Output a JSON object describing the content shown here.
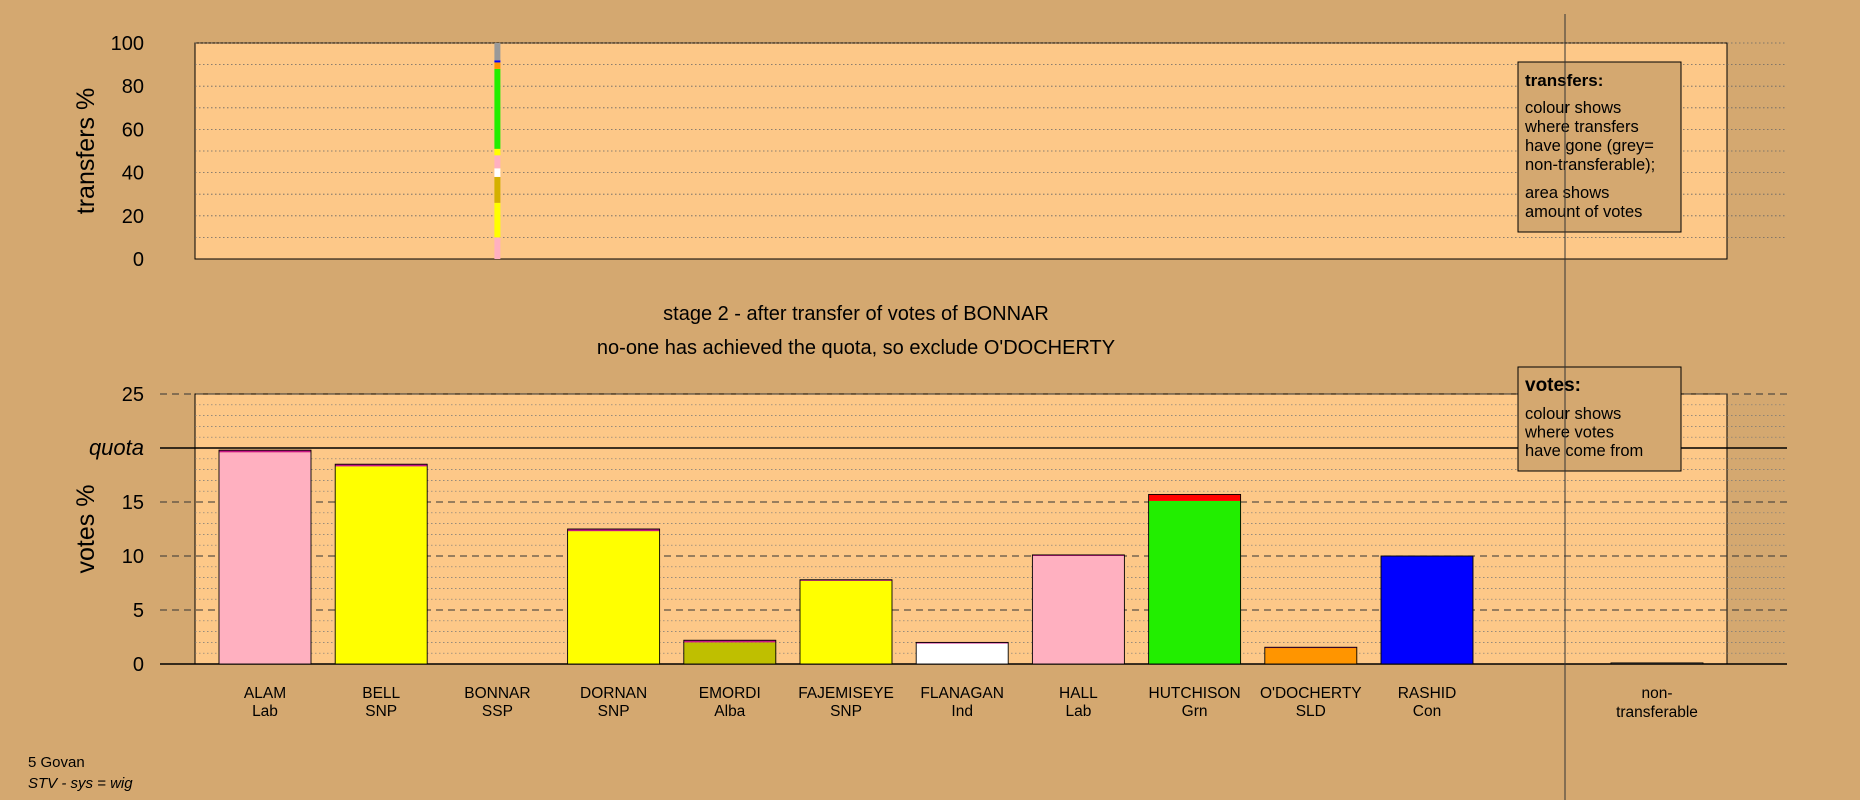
{
  "footer": {
    "area": "5 Govan",
    "system": "STV - sys = wig"
  },
  "colors": {
    "background": "#d4a870",
    "plot_bg": "#fdc888",
    "legend_bg": "#d4a870",
    "line": "#000000"
  },
  "chart_data": [
    {
      "type": "bar",
      "stacked": true,
      "ylabel": "transfers %",
      "ylim": [
        0,
        100
      ],
      "yticks": [
        0,
        20,
        40,
        60,
        80,
        100
      ],
      "grid": "dotted",
      "legend": {
        "placement": "top-right",
        "title": "transfers:",
        "lines1": [
          "colour shows",
          "where transfers",
          "have gone (grey=",
          "non-transferable);"
        ],
        "lines2": [
          "area shows",
          "amount of votes"
        ]
      },
      "bars": [
        {
          "category": "BONNAR",
          "segments": [
            {
              "to": "HALL",
              "value": 10,
              "color": "#ffb0c0"
            },
            {
              "to": "BELL",
              "value": 14,
              "color": "#ffff00"
            },
            {
              "to": "DORNAN",
              "value": 2,
              "color": "#ffff00"
            },
            {
              "to": "EMORDI",
              "value": 12,
              "color": "#d4b000"
            },
            {
              "to": "FLANAGAN",
              "value": 4,
              "color": "#ffffff"
            },
            {
              "to": "ALAM",
              "value": 6,
              "color": "#ffb0c0"
            },
            {
              "to": "FAJEMISEYE",
              "value": 3,
              "color": "#ffff00"
            },
            {
              "to": "HUTCHISON",
              "value": 37,
              "color": "#22ee00"
            },
            {
              "to": "O'DOCHERTY",
              "value": 3,
              "color": "#ff9500"
            },
            {
              "to": "RASHID",
              "value": 1,
              "color": "#0000ff"
            },
            {
              "to": "non-transferable",
              "value": 8,
              "color": "#999999"
            }
          ]
        }
      ]
    },
    {
      "type": "bar",
      "stacked": true,
      "ylabel": "votes %",
      "ylim": [
        0,
        25
      ],
      "yticks": [
        0,
        5,
        10,
        15,
        20,
        25
      ],
      "quota": 20,
      "quota_label": "quota",
      "titles": [
        "stage 2 - after transfer of votes of BONNAR",
        "no-one has achieved the quota, so exclude O'DOCHERTY"
      ],
      "legend": {
        "placement": "top-right",
        "title": "votes:",
        "lines": [
          "colour shows",
          "where votes",
          "have come from"
        ]
      },
      "categories": [
        {
          "name": "ALAM",
          "party": "Lab"
        },
        {
          "name": "BELL",
          "party": "SNP"
        },
        {
          "name": "BONNAR",
          "party": "SSP"
        },
        {
          "name": "DORNAN",
          "party": "SNP"
        },
        {
          "name": "EMORDI",
          "party": "Alba"
        },
        {
          "name": "FAJEMISEYE",
          "party": "SNP"
        },
        {
          "name": "FLANAGAN",
          "party": "Ind"
        },
        {
          "name": "HALL",
          "party": "Lab"
        },
        {
          "name": "HUTCHISON",
          "party": "Grn"
        },
        {
          "name": "O'DOCHERTY",
          "party": "SLD"
        },
        {
          "name": "RASHID",
          "party": "Con"
        }
      ],
      "nontransferable_label": [
        "non-",
        "transferable"
      ],
      "bars": [
        {
          "name": "ALAM",
          "segments": [
            {
              "value": 19.6,
              "color": "#ffb0c0"
            },
            {
              "value": 0.2,
              "color": "#c71585"
            }
          ]
        },
        {
          "name": "BELL",
          "segments": [
            {
              "value": 18.3,
              "color": "#ffff00"
            },
            {
              "value": 0.2,
              "color": "#c71585"
            }
          ]
        },
        {
          "name": "BONNAR",
          "segments": []
        },
        {
          "name": "DORNAN",
          "segments": [
            {
              "value": 12.3,
              "color": "#ffff00"
            },
            {
              "value": 0.2,
              "color": "#c71585"
            }
          ]
        },
        {
          "name": "EMORDI",
          "segments": [
            {
              "value": 2.0,
              "color": "#bfbf00"
            },
            {
              "value": 0.2,
              "color": "#c71585"
            }
          ]
        },
        {
          "name": "FAJEMISEYE",
          "segments": [
            {
              "value": 7.7,
              "color": "#ffff00"
            },
            {
              "value": 0.1,
              "color": "#c71585"
            }
          ]
        },
        {
          "name": "FLANAGAN",
          "segments": [
            {
              "value": 1.9,
              "color": "#ffffff"
            },
            {
              "value": 0.1,
              "color": "#c71585"
            }
          ]
        },
        {
          "name": "HALL",
          "segments": [
            {
              "value": 10.0,
              "color": "#ffb0c0"
            },
            {
              "value": 0.1,
              "color": "#c71585"
            }
          ]
        },
        {
          "name": "HUTCHISON",
          "segments": [
            {
              "value": 15.1,
              "color": "#22ee00"
            },
            {
              "value": 0.6,
              "color": "#ff0000"
            }
          ]
        },
        {
          "name": "O'DOCHERTY",
          "segments": [
            {
              "value": 1.5,
              "color": "#ff9500"
            },
            {
              "value": 0.05,
              "color": "#c71585"
            }
          ]
        },
        {
          "name": "RASHID",
          "segments": [
            {
              "value": 10.0,
              "color": "#0000ff"
            }
          ]
        },
        {
          "name": "non-transferable",
          "segments": [
            {
              "value": 0.1,
              "color": "#999999"
            }
          ]
        }
      ]
    }
  ]
}
